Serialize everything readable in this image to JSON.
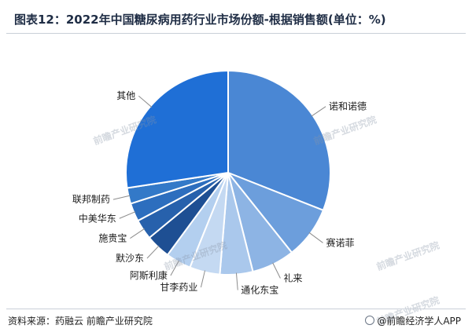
{
  "title": "图表12：2022年中国糖尿病用药行业市场份额-根据销售额(单位：%)",
  "source": "资料来源：药融云 前瞻产业研究院",
  "credit": "@前瞻经济学人APP",
  "credit_icon": "logo-circle-icon",
  "watermark": {
    "text": "前瞻产业研究院",
    "color": "#8a96a8",
    "opacity": 0.35
  },
  "chart_data": {
    "type": "pie",
    "title": "2022年中国糖尿病用药行业市场份额-根据销售额(单位：%)",
    "start_angle": 0,
    "direction": "clockwise",
    "slices": [
      {
        "label": "诺和诺德",
        "value": 31.0,
        "color": "#4a87d4"
      },
      {
        "label": "赛诺菲",
        "value": 8.3,
        "color": "#6c9edc"
      },
      {
        "label": "礼来",
        "value": 6.8,
        "color": "#8db4e4"
      },
      {
        "label": "通化东宝",
        "value": 5.2,
        "color": "#aac8ec"
      },
      {
        "label": "甘李药业",
        "value": 4.8,
        "color": "#c4d9f2"
      },
      {
        "label": "阿斯利康",
        "value": 4.0,
        "color": "#b3cfef"
      },
      {
        "label": "默沙东",
        "value": 3.9,
        "color": "#1e4f93"
      },
      {
        "label": "施贵宝",
        "value": 3.2,
        "color": "#2761ac"
      },
      {
        "label": "中美华东",
        "value": 2.9,
        "color": "#2d6ebe"
      },
      {
        "label": "联邦制药",
        "value": 2.5,
        "color": "#3379c8"
      },
      {
        "label": "其他",
        "value": 27.4,
        "color": "#1f6fd6"
      }
    ]
  }
}
